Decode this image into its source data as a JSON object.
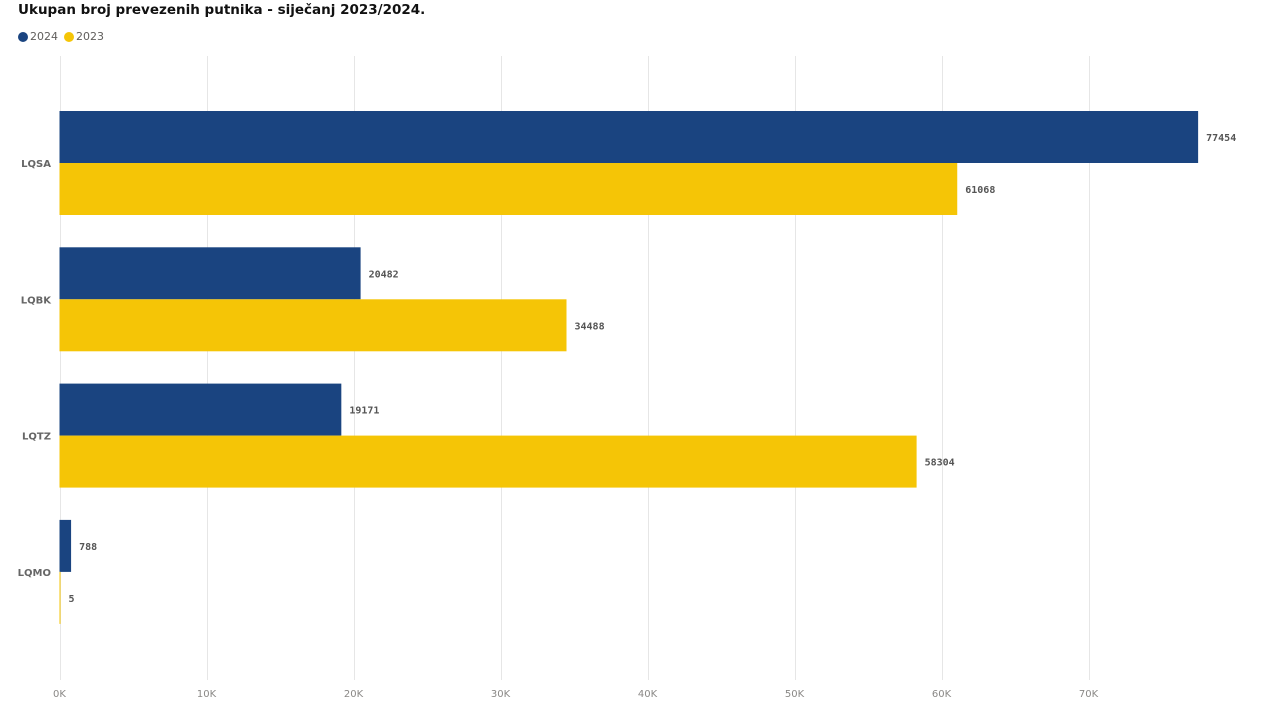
{
  "chart_data": {
    "type": "bar",
    "orientation": "horizontal",
    "title": "Ukupan broj prevezenih putnika - siječanj 2023/2024.",
    "categories": [
      "LQSA",
      "LQBK",
      "LQTZ",
      "LQMO"
    ],
    "series": [
      {
        "name": "2024",
        "color": "#1a4480",
        "values": [
          77454,
          20482,
          19171,
          788
        ]
      },
      {
        "name": "2023",
        "color": "#f5c506",
        "values": [
          61068,
          34488,
          58304,
          5
        ]
      }
    ],
    "xlim": [
      0,
      78500
    ],
    "x_ticks": [
      0,
      10000,
      20000,
      30000,
      40000,
      50000,
      60000,
      70000
    ],
    "x_tick_labels": [
      "0K",
      "10K",
      "20K",
      "30K",
      "40K",
      "50K",
      "60K",
      "70K"
    ],
    "grid": true,
    "legend_position": "top-left"
  }
}
